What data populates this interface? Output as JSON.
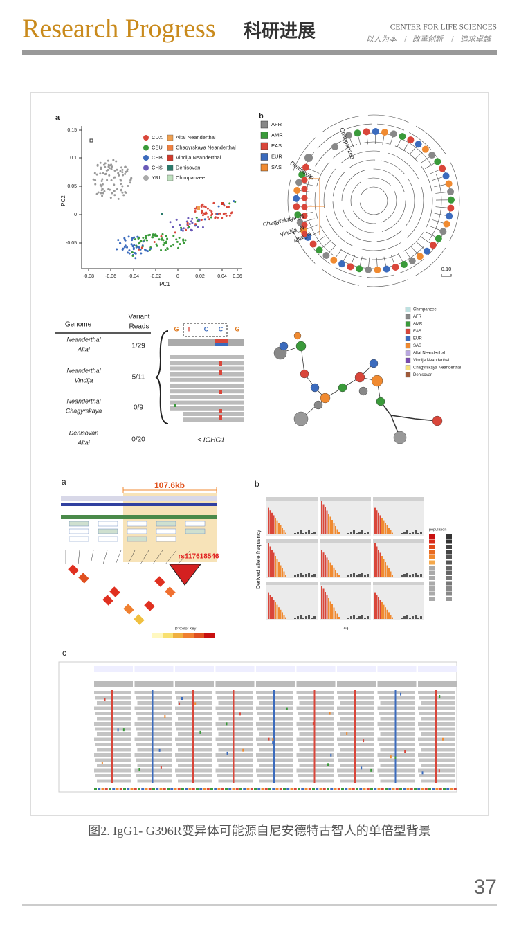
{
  "header": {
    "title": "Research Progress",
    "title_cn": "科研进展",
    "org": "CENTER FOR LIFE SCIENCES",
    "motto": [
      "以人为本",
      "改革创新",
      "追求卓越"
    ]
  },
  "figure": {
    "pca": {
      "label": "a",
      "xlabel": "PC1",
      "ylabel": "PC2",
      "xticks": [
        "-0.08",
        "-0.06",
        "-0.04",
        "-0.02",
        "0",
        "0.02",
        "0.04",
        "0.06"
      ],
      "yticks": [
        "0.15",
        "0.1",
        "0.05",
        "0",
        "-0.05"
      ],
      "legend_left": [
        "CDX",
        "CEU",
        "CHB",
        "CHS",
        "YRI"
      ],
      "legend_right": [
        "Altai Neanderthal",
        "Chagyrskaya Neanderthal",
        "Vindija Neanderthal",
        "Denisovan",
        "Chimpanzee"
      ]
    },
    "tree": {
      "label": "b",
      "legend": [
        "AFR",
        "AMR",
        "EAS",
        "EUR",
        "SAS"
      ],
      "labels": [
        "Chimpanzee",
        "Denisovan",
        "Chagyrskaya_N",
        "Vindija_N",
        "Altai_N"
      ],
      "scale": "0.10"
    },
    "reads": {
      "headers": [
        "Genome",
        "Variant",
        "Reads"
      ],
      "rows": [
        [
          [
            "Neanderthal",
            "Altai"
          ],
          "1/29"
        ],
        [
          [
            "Neanderthal",
            "Vindija"
          ],
          "5/11"
        ],
        [
          [
            "Neanderthal",
            "Chagyrskaya"
          ],
          "0/9"
        ],
        [
          [
            "Denisovan",
            "Altai"
          ],
          "0/20"
        ]
      ],
      "bases": [
        "G",
        "T",
        "C",
        "C",
        "G"
      ],
      "gene": "< IGHG1"
    },
    "network": {
      "legend": [
        "Chimpanzee",
        "AFR",
        "AMR",
        "EAS",
        "EUR",
        "SAS",
        "Altai Neanderthal",
        "Vindija Neanderthal",
        "Chagyrskaya Neanderthal",
        "Denisovan"
      ]
    },
    "ld": {
      "label": "a",
      "size": "107.6kb",
      "snp": "rs117618546",
      "key": "D' Color Key"
    },
    "freq": {
      "label": "b",
      "ylabel": "Derived allele frequency",
      "xlabel": "pop",
      "legend_title": "population"
    },
    "igv": {
      "label": "c"
    }
  },
  "caption": "图2. IgG1- G396R变异体可能源自尼安德特古智人的单倍型背景",
  "page_number": "37"
}
